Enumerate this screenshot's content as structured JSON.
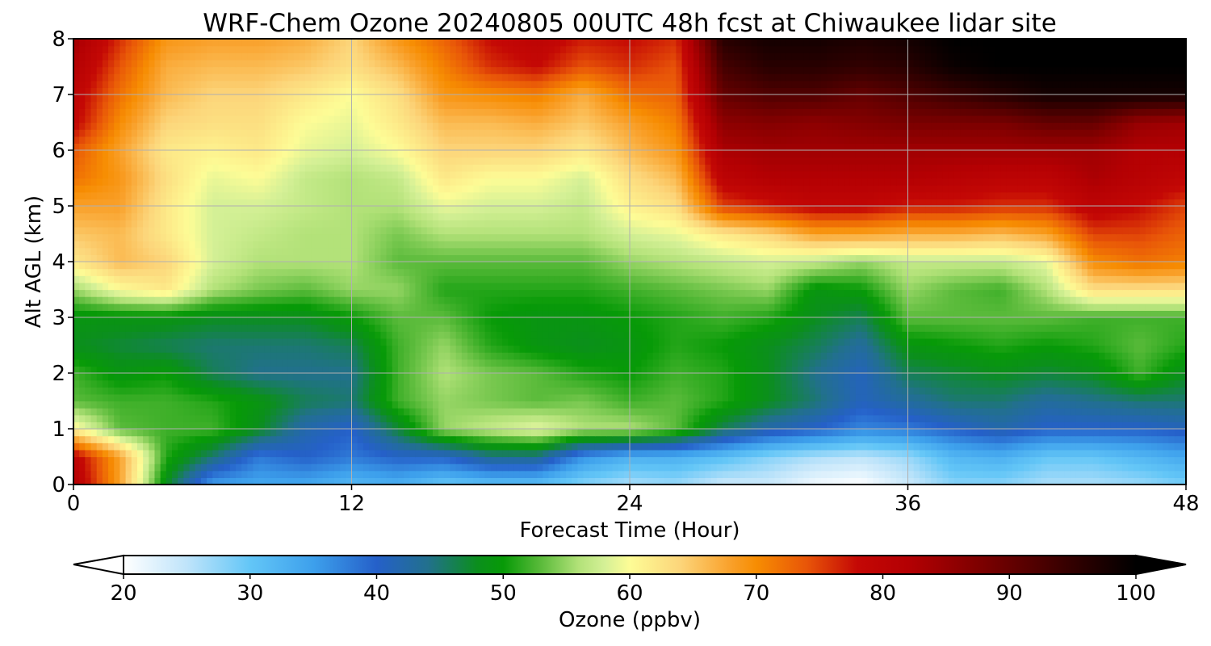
{
  "chart_data": {
    "type": "heatmap",
    "title": "WRF-Chem Ozone  20240805 00UTC 48h fcst at Chiwaukee lidar site",
    "xlabel": "Forecast Time (Hour)",
    "ylabel": "Alt AGL (km)",
    "xlim": [
      0,
      48
    ],
    "ylim": [
      0,
      8
    ],
    "x_ticks": [
      0,
      12,
      24,
      36,
      48
    ],
    "y_ticks": [
      0,
      1,
      2,
      3,
      4,
      5,
      6,
      7,
      8
    ],
    "grid": true,
    "x_hours": [
      0,
      2,
      4,
      6,
      8,
      10,
      12,
      14,
      16,
      18,
      20,
      22,
      24,
      26,
      28,
      30,
      32,
      34,
      36,
      38,
      40,
      42,
      44,
      46,
      48
    ],
    "z_km": [
      0,
      0.5,
      1,
      1.5,
      2,
      2.5,
      3,
      3.5,
      4,
      4.5,
      5,
      5.5,
      6,
      6.5,
      7,
      7.5,
      8
    ],
    "ozone_ppbv": [
      [
        82,
        68,
        48,
        35,
        34,
        34,
        32,
        33,
        30,
        31,
        31,
        28,
        26,
        27,
        24,
        24,
        21,
        20,
        24,
        28,
        28,
        26,
        26,
        27,
        29
      ],
      [
        80,
        68,
        51,
        45,
        38,
        40,
        38,
        40,
        40,
        44,
        44,
        36,
        33,
        33,
        31,
        28,
        26,
        25,
        27,
        32,
        33,
        30,
        30,
        32,
        34
      ],
      [
        61,
        53,
        52,
        52,
        48,
        42,
        40,
        47,
        55,
        57,
        59,
        56,
        56,
        53,
        46,
        42,
        40,
        37,
        38,
        40,
        42,
        40,
        40,
        40,
        41
      ],
      [
        53,
        52,
        52,
        51,
        49,
        46,
        45,
        52,
        55,
        54,
        53,
        54,
        52,
        53,
        51,
        48,
        45,
        41,
        43,
        45,
        45,
        43,
        44,
        45,
        45
      ],
      [
        52,
        49,
        50,
        46,
        44,
        44,
        44,
        52,
        56,
        54,
        53,
        51,
        50,
        52,
        51,
        48,
        44,
        41,
        46,
        47,
        48,
        47,
        48,
        52,
        48
      ],
      [
        48,
        47,
        46,
        45,
        45,
        45,
        46,
        52,
        55,
        51,
        49,
        48,
        49,
        51,
        50,
        48,
        46,
        43,
        49,
        50,
        51,
        50,
        51,
        53,
        51
      ],
      [
        49,
        49,
        49,
        48,
        48,
        48,
        50,
        53,
        53,
        50,
        49,
        49,
        50,
        51,
        52,
        51,
        48,
        46,
        53,
        53,
        53,
        53,
        52,
        52,
        52
      ],
      [
        55,
        60,
        62,
        56,
        54,
        53,
        55,
        55,
        51,
        51,
        51,
        51,
        52,
        53,
        54,
        55,
        49,
        50,
        55,
        53,
        52,
        56,
        63,
        63,
        63
      ],
      [
        62,
        66,
        64,
        58,
        56,
        56,
        56,
        53,
        53,
        53,
        53,
        53,
        55,
        56,
        57,
        58,
        57,
        55,
        57,
        57,
        57,
        59,
        70,
        72,
        71
      ],
      [
        65,
        66,
        62,
        58,
        57,
        56,
        56,
        54,
        56,
        56,
        56,
        56,
        58,
        59,
        62,
        64,
        68,
        68,
        67,
        67,
        66,
        68,
        75,
        75,
        73
      ],
      [
        68,
        68,
        62,
        58,
        58,
        57,
        56,
        56,
        59,
        58,
        58,
        57,
        61,
        63,
        75,
        77,
        79,
        79,
        77,
        77,
        76,
        76,
        80,
        78,
        75
      ],
      [
        72,
        69,
        63,
        59,
        60,
        57,
        56,
        57,
        62,
        60,
        60,
        58,
        63,
        66,
        80,
        82,
        82,
        82,
        82,
        81,
        80,
        80,
        83,
        81,
        79
      ],
      [
        74,
        68,
        62,
        61,
        62,
        59,
        58,
        60,
        64,
        64,
        64,
        62,
        66,
        69,
        83,
        84,
        84,
        84,
        84,
        84,
        84,
        84,
        84,
        82,
        82
      ],
      [
        79,
        70,
        64,
        63,
        63,
        60,
        59,
        62,
        66,
        66,
        67,
        65,
        68,
        71,
        86,
        87,
        86,
        87,
        88,
        88,
        88,
        90,
        90,
        85,
        84
      ],
      [
        80,
        72,
        66,
        64,
        64,
        62,
        60,
        63,
        69,
        70,
        71,
        67,
        72,
        73,
        90,
        92,
        92,
        90,
        92,
        94,
        96,
        98,
        98,
        98,
        98
      ],
      [
        82,
        74,
        67,
        66,
        66,
        65,
        63,
        66,
        71,
        76,
        78,
        74,
        76,
        74,
        93,
        96,
        96,
        95,
        96,
        99,
        100,
        100,
        100,
        100,
        100
      ],
      [
        84,
        76,
        69,
        68,
        68,
        67,
        64,
        69,
        73,
        78,
        80,
        77,
        78,
        76,
        96,
        98,
        98,
        97,
        98,
        100,
        100,
        100,
        100,
        100,
        100
      ]
    ],
    "colorbar": {
      "label": "Ozone  (ppbv)",
      "min": 20,
      "max": 100,
      "ticks": [
        20,
        30,
        40,
        50,
        60,
        70,
        80,
        90,
        100
      ],
      "extend": "both",
      "color_stops": [
        [
          20,
          "#ffffff"
        ],
        [
          25,
          "#bfe4fa"
        ],
        [
          30,
          "#63c6f7"
        ],
        [
          35,
          "#3da0ec"
        ],
        [
          40,
          "#2560c9"
        ],
        [
          44,
          "#22708e"
        ],
        [
          48,
          "#0b8f1c"
        ],
        [
          50,
          "#079a07"
        ],
        [
          53,
          "#5bbb3b"
        ],
        [
          56,
          "#b3e279"
        ],
        [
          58,
          "#d4f096"
        ],
        [
          60,
          "#fdfc96"
        ],
        [
          64,
          "#fcd57a"
        ],
        [
          68,
          "#f9a02a"
        ],
        [
          70,
          "#f78d02"
        ],
        [
          74,
          "#e85508"
        ],
        [
          78,
          "#c40805"
        ],
        [
          82,
          "#b40003"
        ],
        [
          88,
          "#7a0000"
        ],
        [
          94,
          "#3c0000"
        ],
        [
          100,
          "#000000"
        ]
      ]
    }
  }
}
